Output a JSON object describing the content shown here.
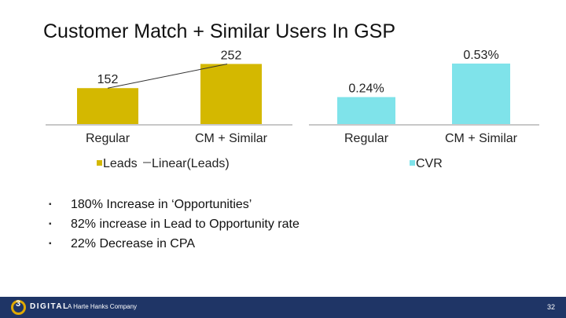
{
  "title": "Customer Match + Similar Users In GSP",
  "chart_data": [
    {
      "type": "bar",
      "categories": [
        "Regular",
        "CM + Similar"
      ],
      "series": [
        {
          "name": "Leads",
          "values": [
            152,
            252
          ]
        }
      ],
      "trendline": {
        "name": "Linear(Leads)",
        "values": [
          152,
          252
        ]
      },
      "data_labels": [
        "152",
        "252"
      ],
      "ylim": [
        0,
        260
      ],
      "legend": [
        "Leads",
        "Linear(Leads)"
      ],
      "legend_position": "bottom",
      "grid": false,
      "colors": {
        "bar": "#d4b800",
        "trend": "#333333"
      }
    },
    {
      "type": "bar",
      "categories": [
        "Regular",
        "CM + Similar"
      ],
      "series": [
        {
          "name": "CVR",
          "values": [
            0.24,
            0.53
          ]
        }
      ],
      "data_labels": [
        "0.24%",
        "0.53%"
      ],
      "ylim": [
        0,
        0.55
      ],
      "legend": [
        "CVR"
      ],
      "legend_position": "bottom",
      "grid": false,
      "colors": {
        "bar": "#7fe3ea"
      }
    }
  ],
  "bullets": [
    "180% Increase in ‘Opportunities’",
    "82% increase in Lead to Opportunity rate",
    "22% Decrease in CPA"
  ],
  "bullet_glyph": "▪",
  "footer": {
    "logo_mark": "3",
    "brand": "DIGITAL",
    "tagline": "A Harte Hanks Company",
    "page_number": "32",
    "colors": {
      "bar": "#1f3566",
      "logo_ring": "#e0a900"
    }
  }
}
